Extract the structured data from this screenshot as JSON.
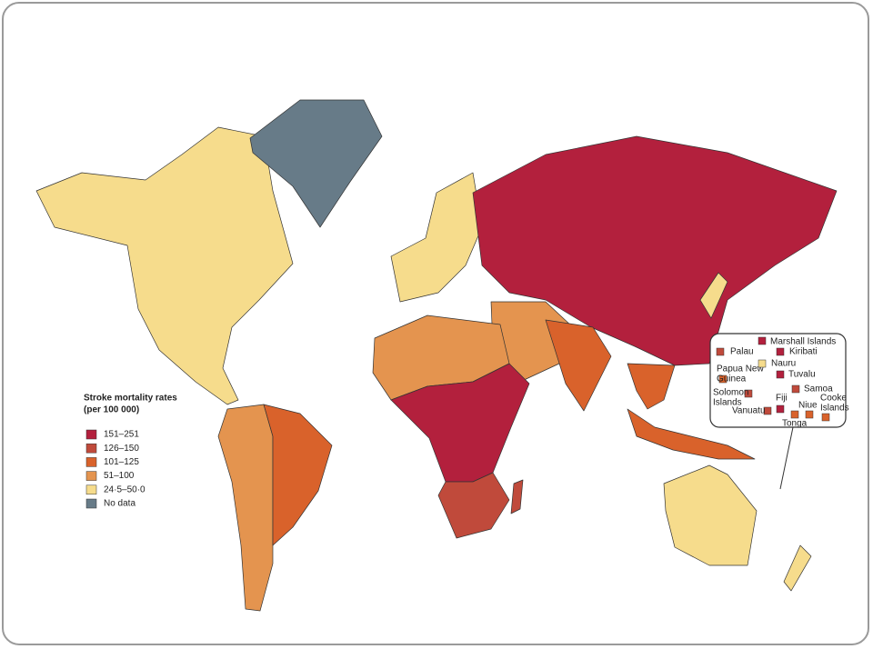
{
  "legend": {
    "title": [
      "Stroke mortality rates",
      "(per 100 000)"
    ],
    "items": [
      {
        "label": "151–251",
        "color": "#b3203d"
      },
      {
        "label": "126–150",
        "color": "#c04a3b"
      },
      {
        "label": "101–125",
        "color": "#d9622b"
      },
      {
        "label": "51–100",
        "color": "#e4944f"
      },
      {
        "label": "24·5–50·0",
        "color": "#f6dc8c"
      },
      {
        "label": "No data",
        "color": "#677b88"
      }
    ]
  },
  "inset": {
    "islands": [
      {
        "label": [
          "Marshall Islands"
        ],
        "color": "#b3203d"
      },
      {
        "label": [
          "Palau"
        ],
        "color": "#c04a3b"
      },
      {
        "label": [
          "Kiribati"
        ],
        "color": "#b3203d"
      },
      {
        "label": [
          "Papua New",
          "Guinea"
        ],
        "color": "#d9622b"
      },
      {
        "label": [
          "Nauru"
        ],
        "color": "#f6dc8c"
      },
      {
        "label": [
          "Tuvalu"
        ],
        "color": "#b3203d"
      },
      {
        "label": [
          "Solomon",
          "Islands"
        ],
        "color": "#c04a3b"
      },
      {
        "label": [
          "Samoa"
        ],
        "color": "#c04a3b"
      },
      {
        "label": [
          "Fiji"
        ],
        "color": "#b3203d"
      },
      {
        "label": [
          "Niue"
        ],
        "color": "#d9622b"
      },
      {
        "label": [
          "Cooke",
          "Islands"
        ],
        "color": "#d9622b"
      },
      {
        "label": [
          "Vanuatu"
        ],
        "color": "#c04a3b"
      },
      {
        "label": [
          "Tonga"
        ],
        "color": "#d9622b"
      }
    ]
  }
}
